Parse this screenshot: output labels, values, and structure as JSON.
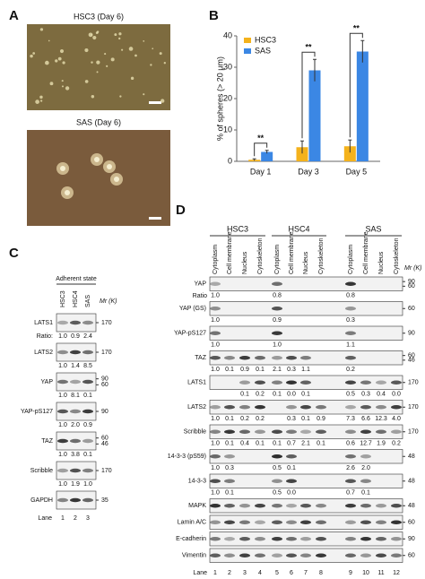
{
  "panel_a": {
    "label": "A",
    "images": [
      {
        "title": "HSC3 (Day 6)"
      },
      {
        "title": "SAS (Day 6)"
      }
    ]
  },
  "chart_data": {
    "label": "B",
    "type": "bar",
    "ylabel": "% of spheres (> 20 μm)",
    "categories": [
      "Day 1",
      "Day 3",
      "Day 5"
    ],
    "series": [
      {
        "name": "HSC3",
        "color": "#f4b21c",
        "values": [
          0.5,
          4.5,
          4.8
        ],
        "errors": [
          0.3,
          2,
          2
        ]
      },
      {
        "name": "SAS",
        "color": "#3b87e4",
        "values": [
          3,
          29,
          35
        ],
        "errors": [
          0.5,
          3.5,
          3.5
        ]
      }
    ],
    "ylim": [
      0,
      40
    ],
    "yticks": [
      0,
      10,
      20,
      30,
      40
    ],
    "legend": "upper left",
    "annotations": [
      "**",
      "**",
      "**"
    ]
  },
  "panel_c": {
    "label": "C",
    "condition": "Adherent state",
    "lanes": [
      "HSC3",
      "HSC4",
      "SAS"
    ],
    "mr_label": "Mr (K)",
    "ratio_label": "Ratio:",
    "rows": [
      {
        "name": "LATS1",
        "mr": [
          170
        ],
        "values": [
          "1.0",
          "0.9",
          "2.4"
        ]
      },
      {
        "name": "LATS2",
        "mr": [
          170
        ],
        "values": [
          "1.0",
          "1.4",
          "8.5"
        ]
      },
      {
        "name": "YAP",
        "mr": [
          90,
          60
        ],
        "values": [
          "1.0",
          "8.1",
          "0.1"
        ]
      },
      {
        "name": "YAP-pS127",
        "mr": [
          90
        ],
        "values": [
          "1.0",
          "2.0",
          "0.9"
        ]
      },
      {
        "name": "TAZ",
        "mr": [
          60,
          46
        ],
        "values": [
          "1.0",
          "3.8",
          "0.1"
        ]
      },
      {
        "name": "Scribble",
        "mr": [
          170
        ],
        "values": [
          "1.0",
          "1.9",
          "1.0"
        ]
      },
      {
        "name": "GAPDH",
        "mr": [
          35
        ]
      }
    ],
    "lane_label": "Lane",
    "lane_numbers": [
      1,
      2,
      3
    ]
  },
  "panel_d": {
    "label": "D",
    "groups": [
      "HSC3",
      "HSC4",
      "SAS"
    ],
    "fractions": [
      "Cytoplasm",
      "Cell membrane",
      "Nucleus",
      "Cytoskeleton"
    ],
    "mr_label": "Mr (K)",
    "ratio_label": "Ratio",
    "rows": [
      {
        "name": "YAP",
        "mr": [
          90,
          60
        ],
        "values": [
          "1.0",
          null,
          null,
          null,
          "0.8",
          null,
          null,
          null,
          "0.8",
          null,
          null,
          null
        ]
      },
      {
        "name": "YAP (GS)",
        "mr": [
          60
        ],
        "values": [
          "1.0",
          null,
          null,
          null,
          "0.9",
          null,
          null,
          null,
          "0.3",
          null,
          null,
          null
        ]
      },
      {
        "name": "YAP-pS127",
        "mr": [
          90
        ],
        "values": [
          "1.0",
          null,
          null,
          null,
          "1.0",
          null,
          null,
          null,
          "1.1",
          null,
          null,
          null
        ]
      },
      {
        "name": "TAZ",
        "mr": [
          60,
          46
        ],
        "values": [
          "1.0",
          "0.1",
          "0.9",
          "0.1",
          "2.1",
          "0.3",
          "1.1",
          null,
          "0.2",
          null,
          null,
          null
        ]
      },
      {
        "name": "LATS1",
        "mr": [
          170
        ],
        "values": [
          null,
          null,
          "0.1",
          "0.2",
          "0.1",
          "0.0",
          "0.1",
          null,
          "0.5",
          "0.3",
          "0.4",
          "0.0"
        ]
      },
      {
        "name": "LATS2",
        "mr": [
          170
        ],
        "values": [
          "1.0",
          "0.1",
          "0.2",
          "0.2",
          null,
          "0.3",
          "0.1",
          "0.9",
          "7.3",
          "6.6",
          "12.3",
          "4.0"
        ]
      },
      {
        "name": "Scribble",
        "mr": [
          170
        ],
        "values": [
          "1.0",
          "0.1",
          "0.4",
          "0.1",
          "0.1",
          "0.7",
          "2.1",
          "0.1",
          "0.6",
          "12.7",
          "1.9",
          "0.2"
        ]
      },
      {
        "name": "14-3-3 (pS59)",
        "mr": [
          48
        ],
        "values": [
          "1.0",
          "0.3",
          null,
          null,
          "0.5",
          "0.1",
          null,
          null,
          "2.6",
          "2.0",
          null,
          null
        ]
      },
      {
        "name": "14-3-3",
        "mr": [
          48
        ],
        "values": [
          "1.0",
          "0.1",
          null,
          null,
          "0.5",
          "0.0",
          null,
          null,
          "0.7",
          "0.1",
          null,
          null
        ]
      },
      {
        "name": "MAPK",
        "mr": [
          48
        ]
      },
      {
        "name": "Lamin A/C",
        "mr": [
          60
        ]
      },
      {
        "name": "E-cadherin",
        "mr": [
          90
        ]
      },
      {
        "name": "Vimentin",
        "mr": [
          60
        ]
      }
    ],
    "lane_label": "Lane",
    "lane_numbers": [
      1,
      2,
      3,
      4,
      5,
      6,
      7,
      8,
      9,
      10,
      11,
      12
    ]
  }
}
